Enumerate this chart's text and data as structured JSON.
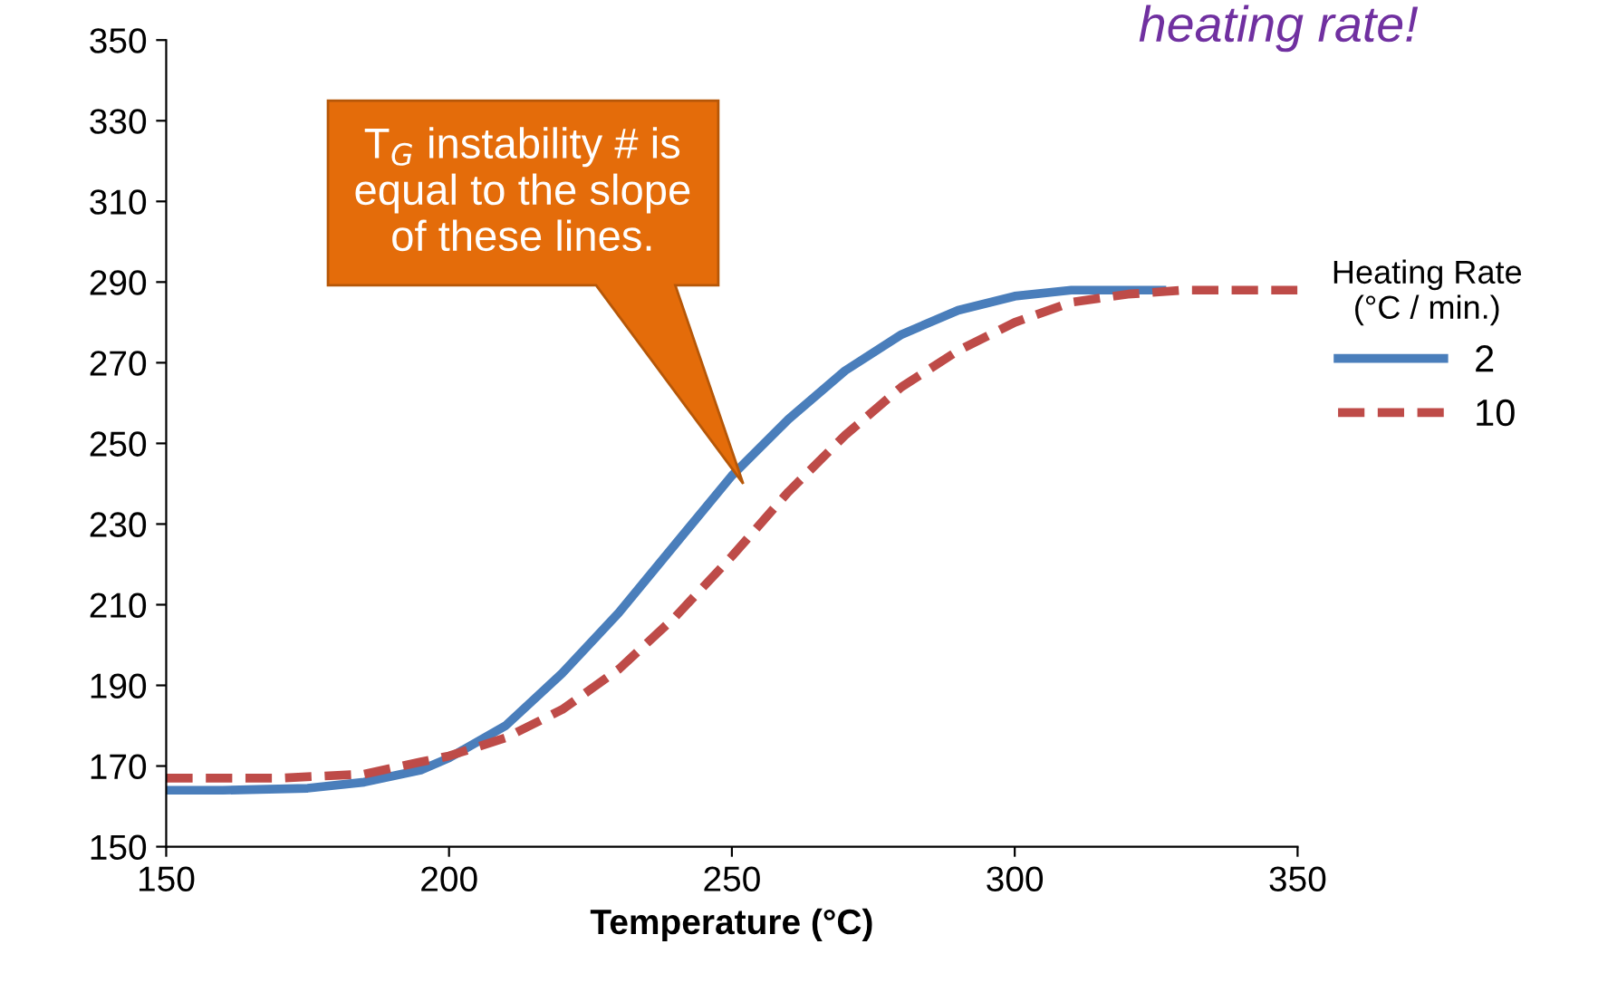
{
  "chart_data": {
    "type": "line",
    "xlabel": "Temperature (°C)",
    "legend_title": "Heating Rate\n(°C / min.)",
    "legend": "right",
    "grid": false,
    "marker": "none",
    "xlim": [
      150,
      350
    ],
    "xticks": [
      150,
      200,
      250,
      300,
      350
    ],
    "ylim": [
      150,
      350
    ],
    "yticks": [
      150,
      170,
      190,
      210,
      230,
      250,
      270,
      290,
      310,
      330,
      350
    ],
    "series": [
      {
        "name": "2",
        "color": "#4a7ebb",
        "line_style": "solid",
        "x": [
          150,
          160,
          175,
          185,
          195,
          200,
          210,
          220,
          230,
          240,
          250,
          260,
          270,
          280,
          290,
          300,
          310,
          320,
          326
        ],
        "values": [
          164,
          164,
          164.5,
          166,
          169,
          172,
          180,
          193,
          208,
          225,
          242,
          256,
          268,
          277,
          283,
          286.5,
          288,
          288,
          288
        ]
      },
      {
        "name": "10",
        "color": "#be4b48",
        "line_style": "dashed",
        "x": [
          150,
          170,
          185,
          195,
          200,
          210,
          220,
          230,
          240,
          250,
          260,
          270,
          280,
          290,
          300,
          310,
          320,
          330,
          350
        ],
        "values": [
          167,
          167,
          168,
          171,
          172.5,
          177,
          184,
          194,
          207,
          222,
          238,
          252,
          264,
          273,
          280,
          285,
          287,
          288,
          288
        ]
      }
    ],
    "annotations": [
      "T$_{G}$ instability # is\nequal to the slope\nof these lines.",
      "heating rate!"
    ]
  }
}
